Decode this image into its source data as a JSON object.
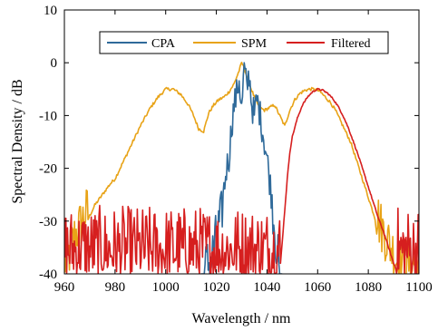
{
  "chart_data": {
    "type": "line",
    "xlabel": "Wavelength / nm",
    "ylabel": "Spectral Density / dB",
    "xlim": [
      960,
      1100
    ],
    "ylim": [
      -40,
      10
    ],
    "xticks": [
      960,
      980,
      1000,
      1020,
      1040,
      1060,
      1080,
      1100
    ],
    "yticks": [
      -40,
      -30,
      -20,
      -10,
      0,
      10
    ],
    "grid": false,
    "legend": {
      "placement": "top-center",
      "orientation": "horizontal"
    },
    "series": [
      {
        "name": "CPA",
        "color": "#2f6a9a",
        "x": [
          1014,
          1018,
          1020,
          1022,
          1023,
          1024,
          1025,
          1026,
          1027,
          1028,
          1029,
          1030,
          1031,
          1032,
          1033,
          1034,
          1035,
          1036,
          1037,
          1038,
          1039,
          1040,
          1041,
          1042,
          1043,
          1044,
          1045,
          1046
        ],
        "y": [
          -40,
          -37,
          -33,
          -29,
          -24,
          -20,
          -18,
          -12,
          -8,
          -6,
          -3,
          -9,
          -1,
          -5,
          -2,
          -8,
          -10,
          -7,
          -9,
          -12,
          -15,
          -18,
          -22,
          -26,
          -31,
          -36,
          -40,
          -40
        ],
        "note_noise": true
      },
      {
        "name": "SPM",
        "color": "#e8a317",
        "x": [
          960,
          962,
          964,
          966,
          968,
          970,
          972,
          975,
          978,
          980,
          983,
          986,
          990,
          994,
          997,
          1000,
          1003,
          1006,
          1009,
          1011,
          1013,
          1015,
          1017,
          1019,
          1021,
          1023,
          1025,
          1027,
          1029,
          1030,
          1031,
          1033,
          1035,
          1037,
          1039,
          1041,
          1043,
          1045,
          1047,
          1049,
          1051,
          1053,
          1055,
          1057,
          1059,
          1061,
          1063,
          1065,
          1067,
          1069,
          1071,
          1073,
          1075,
          1077,
          1079,
          1081,
          1083,
          1085,
          1087,
          1089,
          1091,
          1093,
          1095,
          1097,
          1100
        ],
        "y": [
          -40,
          -38,
          -35,
          -33,
          -31,
          -29,
          -27,
          -25,
          -23,
          -22,
          -19,
          -16,
          -12,
          -8.5,
          -6.5,
          -5,
          -5,
          -6,
          -8,
          -10,
          -12.5,
          -13,
          -9.5,
          -8,
          -7,
          -6.5,
          -5.5,
          -4,
          -1.5,
          0,
          -1,
          -4,
          -6.5,
          -8.5,
          -9,
          -8.5,
          -8,
          -10,
          -12,
          -9,
          -7,
          -5.8,
          -5.2,
          -5,
          -5,
          -5.5,
          -6.5,
          -7.5,
          -9,
          -11,
          -13,
          -15,
          -18,
          -21,
          -24,
          -27,
          -30,
          -33,
          -35,
          -37,
          -39,
          -40,
          -40,
          -40,
          -40
        ],
        "note_noise": true
      },
      {
        "name": "Filtered",
        "color": "#d61f1f",
        "x": [
          960,
          970,
          980,
          990,
          1000,
          1010,
          1020,
          1030,
          1040,
          1045,
          1046,
          1047,
          1048,
          1049,
          1050,
          1052,
          1054,
          1056,
          1058,
          1060,
          1062,
          1064,
          1066,
          1068,
          1070,
          1072,
          1074,
          1076,
          1078,
          1080,
          1082,
          1084,
          1086,
          1088,
          1090,
          1092,
          1094,
          1096,
          1100
        ],
        "y": [
          -40,
          -40,
          -40,
          -40,
          -40,
          -40,
          -40,
          -40,
          -40,
          -40,
          -34,
          -28,
          -22,
          -17,
          -14,
          -10.5,
          -8,
          -6.5,
          -5.5,
          -5,
          -5.2,
          -5.8,
          -6.8,
          -8.2,
          -10,
          -12.2,
          -14.8,
          -17.5,
          -20.5,
          -23.5,
          -26.5,
          -29.5,
          -32,
          -35,
          -38,
          -40,
          -40,
          -40,
          -40
        ],
        "note_noise": true
      }
    ]
  }
}
